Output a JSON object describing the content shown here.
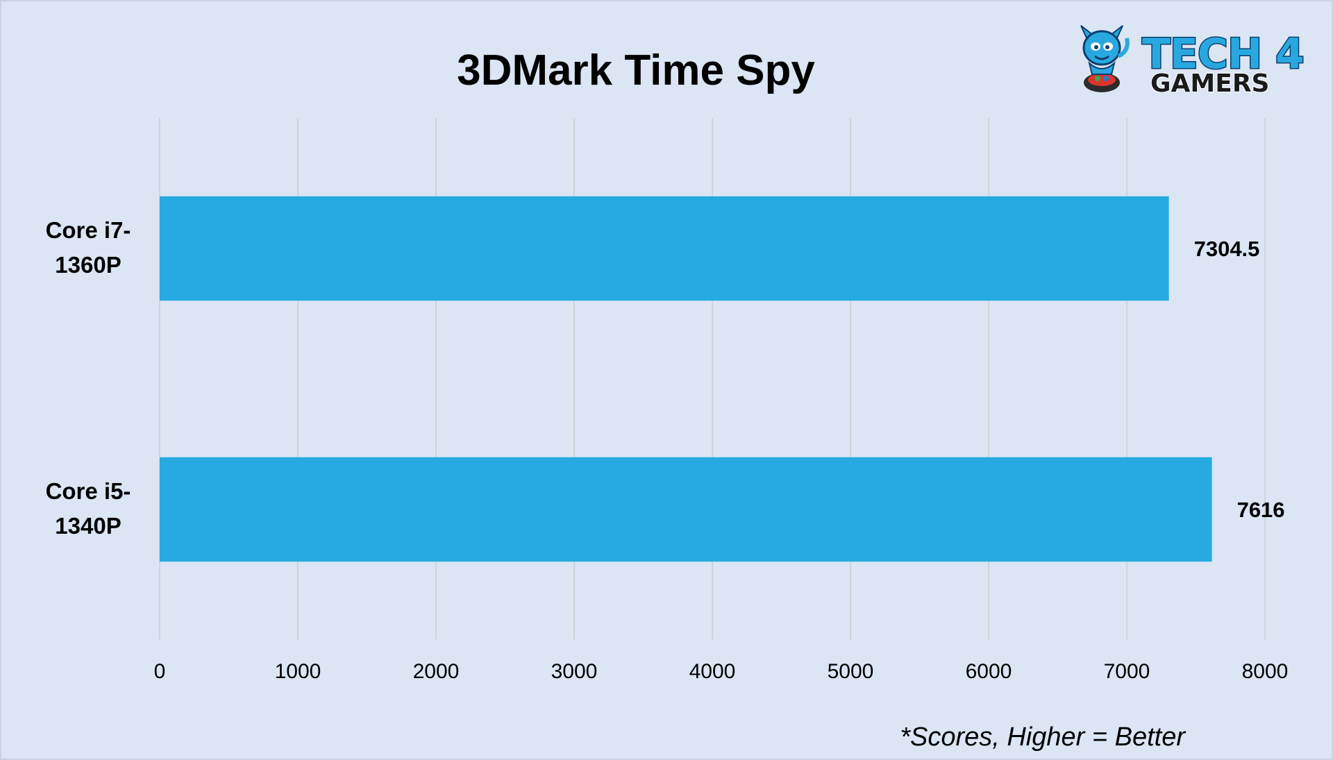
{
  "chart_data": {
    "type": "bar",
    "orientation": "horizontal",
    "title": "3DMark Time Spy",
    "xlabel": "",
    "ylabel": "",
    "categories": [
      [
        "Core i7-",
        "1360P"
      ],
      [
        "Core i5-",
        "1340P"
      ]
    ],
    "values": [
      7304.5,
      7616
    ],
    "value_labels": [
      "7304.5",
      "7616"
    ],
    "xlim": [
      0,
      8000
    ],
    "xticks": [
      0,
      1000,
      2000,
      3000,
      4000,
      5000,
      6000,
      7000,
      8000
    ],
    "grid": "vertical",
    "legend": "none",
    "bar_color": "#26aae1",
    "gridline_color": "#cfd4da",
    "background_color": "#dbe5f3",
    "note": "*Scores, Higher = Better"
  },
  "logo": {
    "top": "TECH 4",
    "bottom": "GAMERS",
    "icon": "mascot-icon"
  }
}
